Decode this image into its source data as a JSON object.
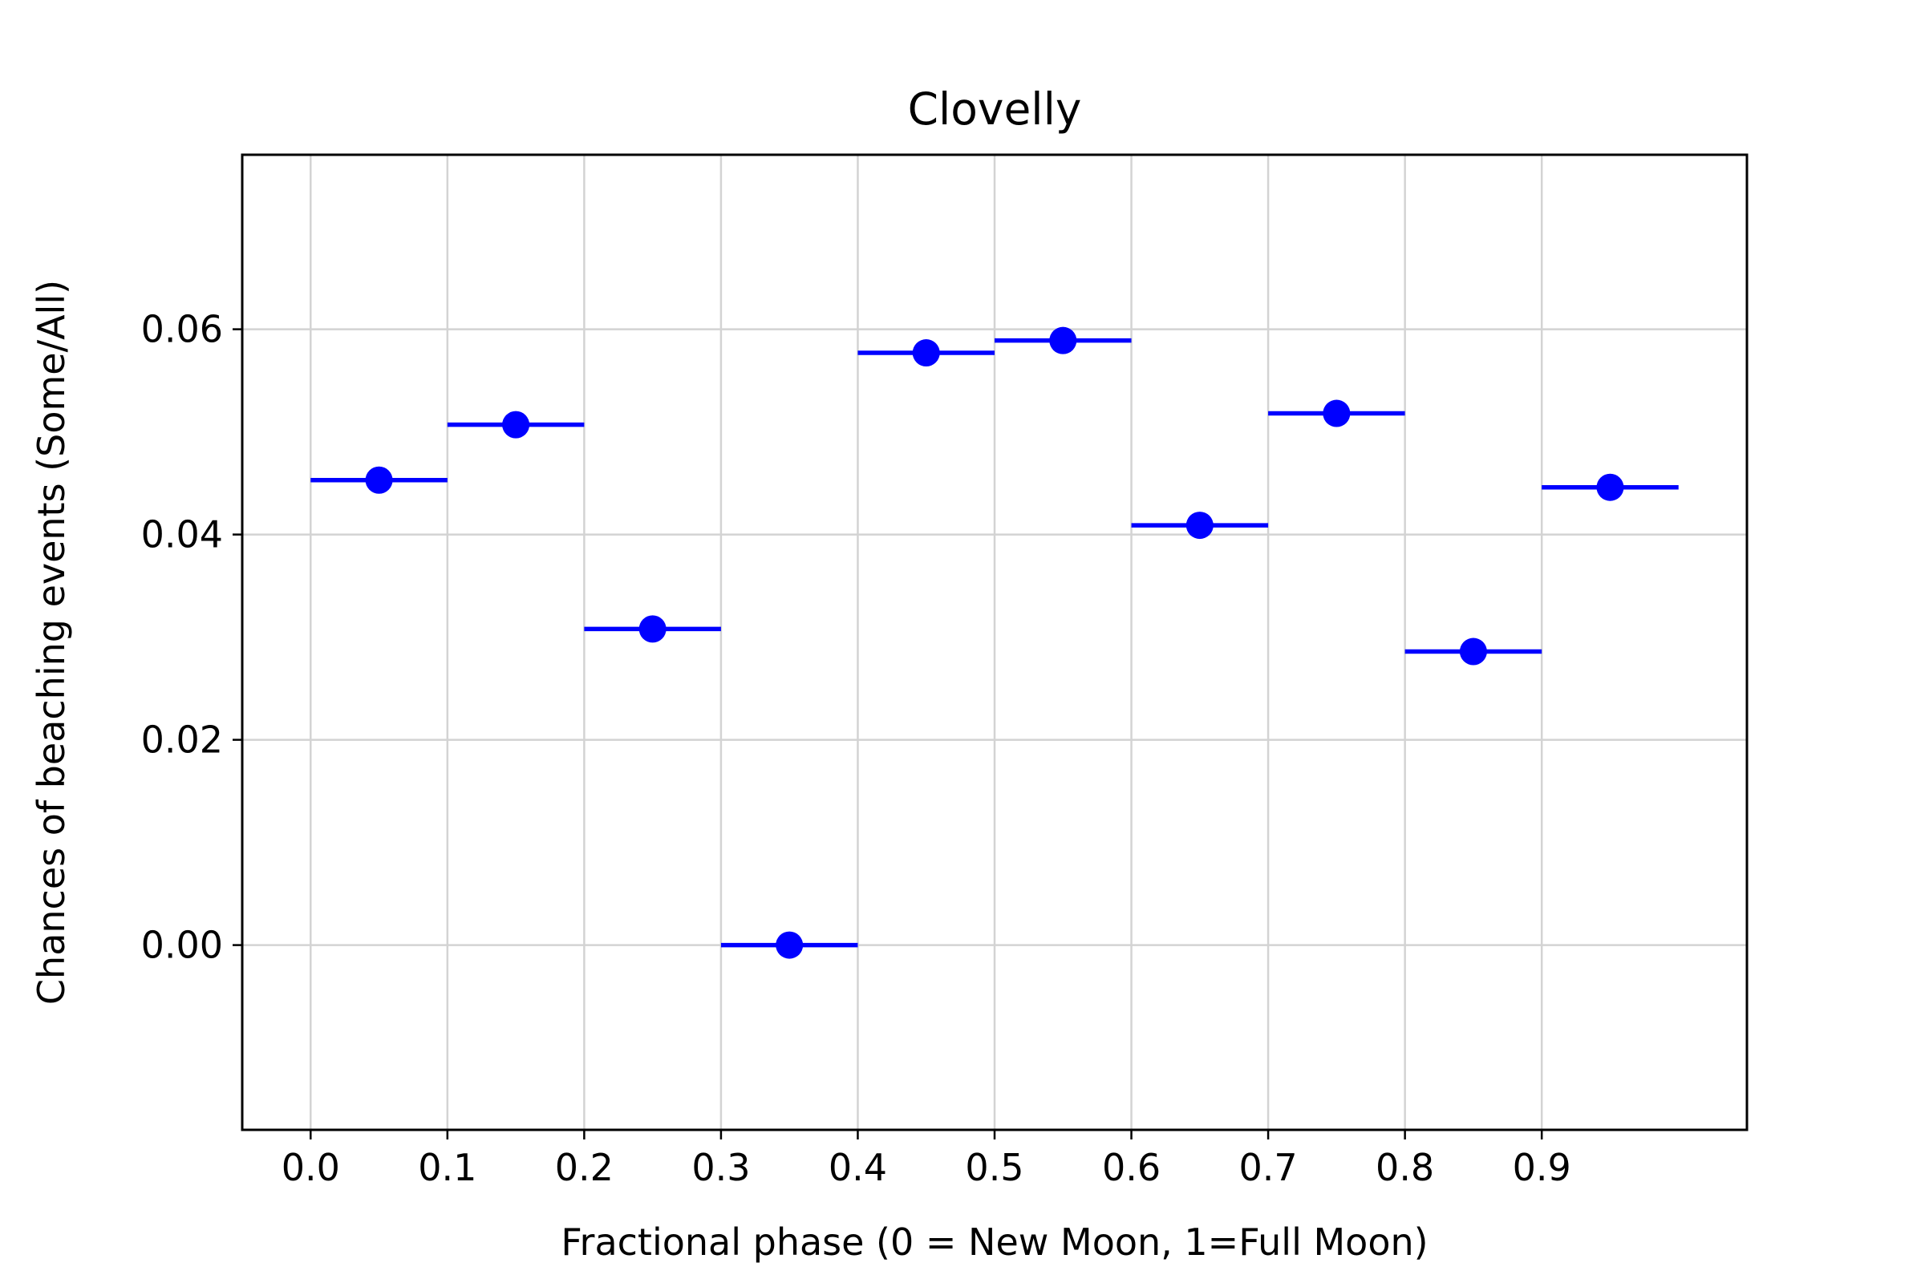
{
  "chart_data": {
    "type": "scatter",
    "title": "Clovelly",
    "xlabel": "Fractional phase (0 = New Moon, 1=Full Moon)",
    "ylabel": "Chances of beaching events (Some/All)",
    "xlim": [
      -0.05,
      1.05
    ],
    "ylim": [
      -0.018,
      0.077
    ],
    "grid": true,
    "x_ticks": [
      0.0,
      0.1,
      0.2,
      0.3,
      0.4,
      0.5,
      0.6,
      0.7,
      0.8,
      0.9
    ],
    "x_tick_labels": [
      "0.0",
      "0.1",
      "0.2",
      "0.3",
      "0.4",
      "0.5",
      "0.6",
      "0.7",
      "0.8",
      "0.9"
    ],
    "y_ticks": [
      0.0,
      0.02,
      0.04,
      0.06
    ],
    "y_tick_labels": [
      "0.00",
      "0.02",
      "0.04",
      "0.06"
    ],
    "series": [
      {
        "color": "#0000ff",
        "marker": "circle",
        "x_error": 0.05,
        "x": [
          0.05,
          0.15,
          0.25,
          0.35,
          0.45,
          0.55,
          0.65,
          0.75,
          0.85,
          0.95
        ],
        "y": [
          0.0453,
          0.0507,
          0.0308,
          0.0,
          0.0577,
          0.0589,
          0.0409,
          0.0518,
          0.0286,
          0.0446
        ]
      }
    ]
  }
}
